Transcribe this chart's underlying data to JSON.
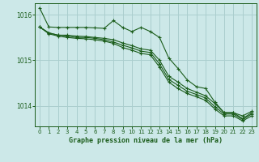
{
  "background_color": "#cce8e8",
  "grid_color": "#aacece",
  "line_color": "#1a5c1a",
  "xlabel": "Graphe pression niveau de la mer (hPa)",
  "xlim": [
    -0.5,
    23.5
  ],
  "ylim": [
    1013.55,
    1016.25
  ],
  "yticks": [
    1014,
    1015,
    1016
  ],
  "xticks": [
    0,
    1,
    2,
    3,
    4,
    5,
    6,
    7,
    8,
    9,
    10,
    11,
    12,
    13,
    14,
    15,
    16,
    17,
    18,
    19,
    20,
    21,
    22,
    23
  ],
  "series": [
    [
      1016.15,
      1015.73,
      1015.72,
      1015.72,
      1015.72,
      1015.72,
      1015.71,
      1015.7,
      1015.87,
      1015.72,
      1015.63,
      1015.72,
      1015.63,
      1015.5,
      1015.05,
      1014.82,
      1014.57,
      1014.42,
      1014.38,
      1014.08,
      1013.85,
      1013.85,
      1013.78,
      1013.88
    ],
    [
      1015.73,
      1015.6,
      1015.55,
      1015.55,
      1015.53,
      1015.52,
      1015.5,
      1015.48,
      1015.45,
      1015.38,
      1015.32,
      1015.25,
      1015.22,
      1015.0,
      1014.65,
      1014.52,
      1014.38,
      1014.3,
      1014.22,
      1014.05,
      1013.85,
      1013.85,
      1013.72,
      1013.85
    ],
    [
      1015.73,
      1015.6,
      1015.55,
      1015.53,
      1015.5,
      1015.5,
      1015.48,
      1015.45,
      1015.4,
      1015.33,
      1015.27,
      1015.2,
      1015.17,
      1014.92,
      1014.58,
      1014.45,
      1014.32,
      1014.25,
      1014.17,
      1013.98,
      1013.82,
      1013.82,
      1013.7,
      1013.82
    ],
    [
      1015.73,
      1015.58,
      1015.53,
      1015.5,
      1015.48,
      1015.47,
      1015.45,
      1015.42,
      1015.37,
      1015.28,
      1015.22,
      1015.15,
      1015.12,
      1014.85,
      1014.52,
      1014.38,
      1014.27,
      1014.2,
      1014.12,
      1013.93,
      1013.78,
      1013.78,
      1013.67,
      1013.78
    ]
  ]
}
